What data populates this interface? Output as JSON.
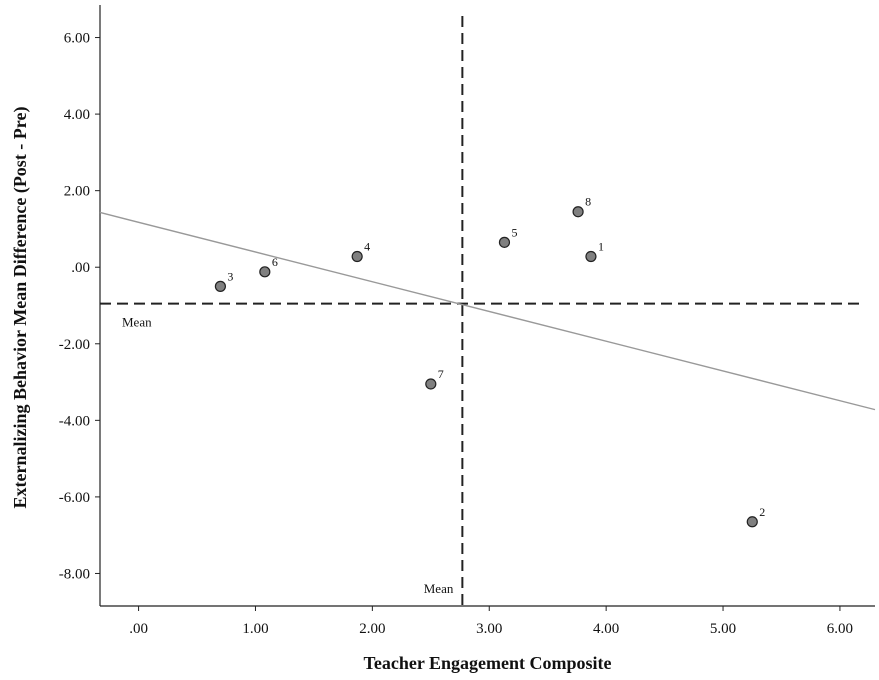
{
  "chart_data": {
    "type": "scatter",
    "xlabel": "Teacher Engagement Composite",
    "ylabel": "Externalizing Behavior Mean Difference (Post - Pre)",
    "xlim": [
      -0.33,
      6.3
    ],
    "ylim": [
      -8.85,
      6.85
    ],
    "x_ticks": [
      0,
      1,
      2,
      3,
      4,
      5,
      6
    ],
    "x_tick_labels": [
      ".00",
      "1.00",
      "2.00",
      "3.00",
      "4.00",
      "5.00",
      "6.00"
    ],
    "y_ticks": [
      6,
      4,
      2,
      0,
      -2,
      -4,
      -6,
      -8
    ],
    "y_tick_labels": [
      "6.00",
      "4.00",
      "2.00",
      ".00",
      "-2.00",
      "-4.00",
      "-6.00",
      "-8.00"
    ],
    "grid": false,
    "points": [
      {
        "label": "1",
        "x": 3.87,
        "y": 0.28
      },
      {
        "label": "2",
        "x": 5.25,
        "y": -6.65
      },
      {
        "label": "3",
        "x": 0.7,
        "y": -0.5
      },
      {
        "label": "4",
        "x": 1.87,
        "y": 0.28
      },
      {
        "label": "5",
        "x": 3.13,
        "y": 0.65
      },
      {
        "label": "6",
        "x": 1.08,
        "y": -0.12
      },
      {
        "label": "7",
        "x": 2.5,
        "y": -3.05
      },
      {
        "label": "8",
        "x": 3.76,
        "y": 1.45
      }
    ],
    "fit_line": {
      "x": [
        -0.33,
        6.3
      ],
      "y": [
        1.43,
        -3.72
      ]
    },
    "mean_x": {
      "value": 2.77,
      "label": "Mean"
    },
    "mean_y": {
      "value": -0.95,
      "label": "Mean"
    }
  }
}
